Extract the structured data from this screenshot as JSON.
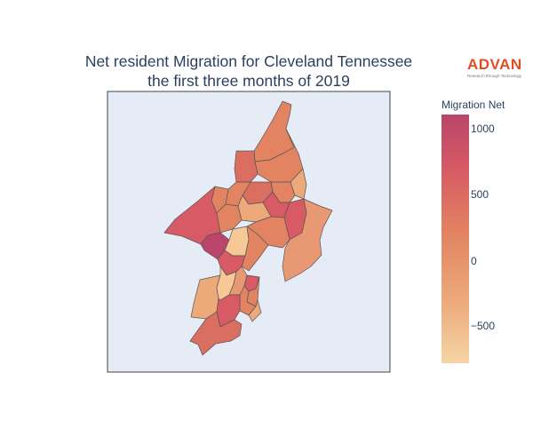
{
  "title": {
    "line1": "Net resident Migration for Cleveland Tennessee",
    "line2": "the first three months of 2019"
  },
  "logo": {
    "wordmark": "ADVAN",
    "tagline": "Research through Technology",
    "color": "#e04e26"
  },
  "map": {
    "background_color": "#e5ecf6",
    "border_color": "#444444"
  },
  "colorbar": {
    "title": "Migration Net",
    "range": [
      -800,
      1150
    ],
    "colorscale": [
      "#f7d4a6",
      "#ecaa7a",
      "#e28462",
      "#d75a64",
      "#b9456a"
    ],
    "tick_labels": [
      "1000",
      "500",
      "0",
      "−500"
    ],
    "tick_values": [
      1000,
      500,
      0,
      -500
    ]
  }
}
